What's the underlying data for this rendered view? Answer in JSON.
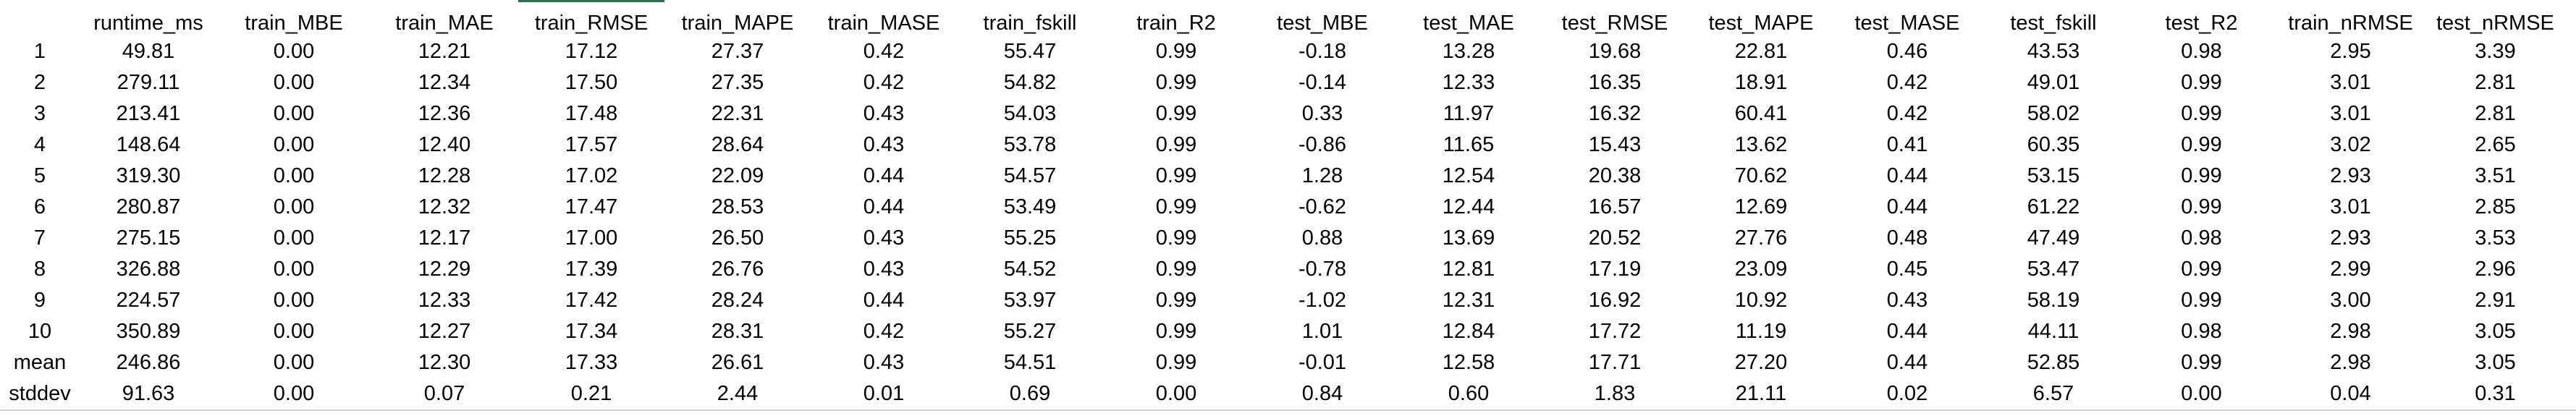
{
  "columns": [
    "",
    "runtime_ms",
    "train_MBE",
    "train_MAE",
    "train_RMSE",
    "train_MAPE",
    "train_MASE",
    "train_fskill",
    "train_R2",
    "test_MBE",
    "test_MAE",
    "test_RMSE",
    "test_MAPE",
    "test_MASE",
    "test_fskill",
    "test_R2",
    "train_nRMSE",
    "test_nRMSE"
  ],
  "rows": [
    [
      "1",
      "49.81",
      "0.00",
      "12.21",
      "17.12",
      "27.37",
      "0.42",
      "55.47",
      "0.99",
      "-0.18",
      "13.28",
      "19.68",
      "22.81",
      "0.46",
      "43.53",
      "0.98",
      "2.95",
      "3.39"
    ],
    [
      "2",
      "279.11",
      "0.00",
      "12.34",
      "17.50",
      "27.35",
      "0.42",
      "54.82",
      "0.99",
      "-0.14",
      "12.33",
      "16.35",
      "18.91",
      "0.42",
      "49.01",
      "0.99",
      "3.01",
      "2.81"
    ],
    [
      "3",
      "213.41",
      "0.00",
      "12.36",
      "17.48",
      "22.31",
      "0.43",
      "54.03",
      "0.99",
      "0.33",
      "11.97",
      "16.32",
      "60.41",
      "0.42",
      "58.02",
      "0.99",
      "3.01",
      "2.81"
    ],
    [
      "4",
      "148.64",
      "0.00",
      "12.40",
      "17.57",
      "28.64",
      "0.43",
      "53.78",
      "0.99",
      "-0.86",
      "11.65",
      "15.43",
      "13.62",
      "0.41",
      "60.35",
      "0.99",
      "3.02",
      "2.65"
    ],
    [
      "5",
      "319.30",
      "0.00",
      "12.28",
      "17.02",
      "22.09",
      "0.44",
      "54.57",
      "0.99",
      "1.28",
      "12.54",
      "20.38",
      "70.62",
      "0.44",
      "53.15",
      "0.99",
      "2.93",
      "3.51"
    ],
    [
      "6",
      "280.87",
      "0.00",
      "12.32",
      "17.47",
      "28.53",
      "0.44",
      "53.49",
      "0.99",
      "-0.62",
      "12.44",
      "16.57",
      "12.69",
      "0.44",
      "61.22",
      "0.99",
      "3.01",
      "2.85"
    ],
    [
      "7",
      "275.15",
      "0.00",
      "12.17",
      "17.00",
      "26.50",
      "0.43",
      "55.25",
      "0.99",
      "0.88",
      "13.69",
      "20.52",
      "27.76",
      "0.48",
      "47.49",
      "0.98",
      "2.93",
      "3.53"
    ],
    [
      "8",
      "326.88",
      "0.00",
      "12.29",
      "17.39",
      "26.76",
      "0.43",
      "54.52",
      "0.99",
      "-0.78",
      "12.81",
      "17.19",
      "23.09",
      "0.45",
      "53.47",
      "0.99",
      "2.99",
      "2.96"
    ],
    [
      "9",
      "224.57",
      "0.00",
      "12.33",
      "17.42",
      "28.24",
      "0.44",
      "53.97",
      "0.99",
      "-1.02",
      "12.31",
      "16.92",
      "10.92",
      "0.43",
      "58.19",
      "0.99",
      "3.00",
      "2.91"
    ],
    [
      "10",
      "350.89",
      "0.00",
      "12.27",
      "17.34",
      "28.31",
      "0.42",
      "55.27",
      "0.99",
      "1.01",
      "12.84",
      "17.72",
      "11.19",
      "0.44",
      "44.11",
      "0.98",
      "2.98",
      "3.05"
    ],
    [
      "mean",
      "246.86",
      "0.00",
      "12.30",
      "17.33",
      "26.61",
      "0.43",
      "54.51",
      "0.99",
      "-0.01",
      "12.58",
      "17.71",
      "27.20",
      "0.44",
      "52.85",
      "0.99",
      "2.98",
      "3.05"
    ],
    [
      "stddev",
      "91.63",
      "0.00",
      "0.07",
      "0.21",
      "2.44",
      "0.01",
      "0.69",
      "0.00",
      "0.84",
      "0.60",
      "1.83",
      "21.11",
      "0.02",
      "6.57",
      "0.00",
      "0.04",
      "0.31"
    ]
  ],
  "colors": {
    "active_column": "#217346",
    "text": "#000000",
    "background": "#ffffff"
  }
}
